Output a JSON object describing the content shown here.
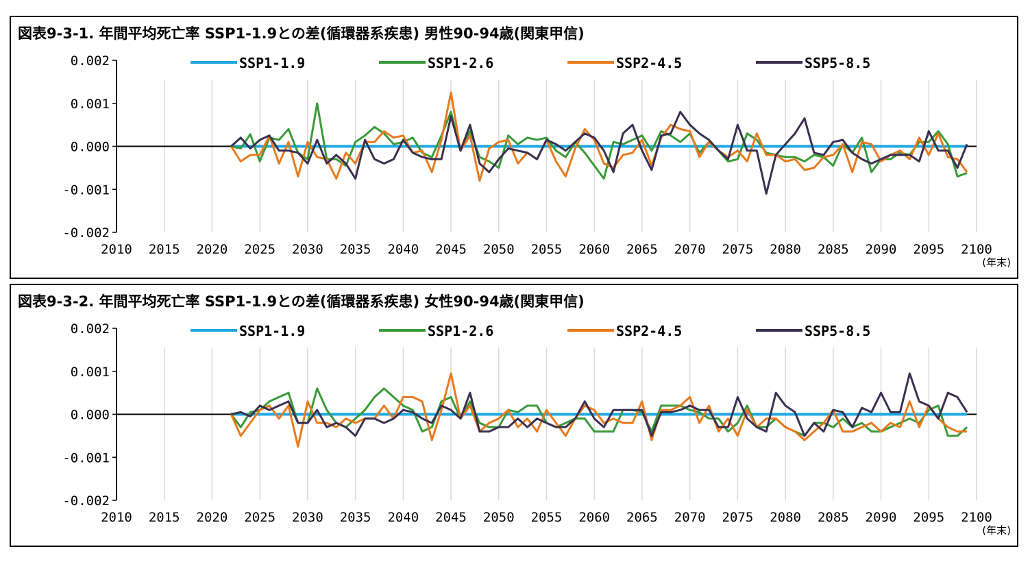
{
  "chart_data": [
    {
      "type": "line",
      "title": "図表9-3-1. 年間平均死亡率 SSP1-1.9との差(循環器系疾患) 男性90-94歳(関東甲信)",
      "xlabel": "",
      "ylabel": "",
      "x_unit": "(年末)",
      "xlim": [
        2010,
        2100
      ],
      "ylim": [
        -0.002,
        0.002
      ],
      "xticks": [
        2010,
        2015,
        2020,
        2025,
        2030,
        2035,
        2040,
        2045,
        2050,
        2055,
        2060,
        2065,
        2070,
        2075,
        2080,
        2085,
        2090,
        2095,
        2100
      ],
      "yticks": [
        0.002,
        0.001,
        0.0,
        -0.001,
        -0.002
      ],
      "ytick_labels": [
        "0.002",
        "0.001",
        "0.000",
        "-0.001",
        "-0.002"
      ],
      "grid": "vertical",
      "legend": "top",
      "baseline": {
        "x": [
          2010,
          2100
        ],
        "y": 0
      },
      "x": [
        2022,
        2023,
        2024,
        2025,
        2026,
        2027,
        2028,
        2029,
        2030,
        2031,
        2032,
        2033,
        2034,
        2035,
        2036,
        2037,
        2038,
        2039,
        2040,
        2041,
        2042,
        2043,
        2044,
        2045,
        2046,
        2047,
        2048,
        2049,
        2050,
        2051,
        2052,
        2053,
        2054,
        2055,
        2056,
        2057,
        2058,
        2059,
        2060,
        2061,
        2062,
        2063,
        2064,
        2065,
        2066,
        2067,
        2068,
        2069,
        2070,
        2071,
        2072,
        2073,
        2074,
        2075,
        2076,
        2077,
        2078,
        2079,
        2080,
        2081,
        2082,
        2083,
        2084,
        2085,
        2086,
        2087,
        2088,
        2089,
        2090,
        2091,
        2092,
        2093,
        2094,
        2095,
        2096,
        2097,
        2098,
        2099
      ],
      "series": [
        {
          "name": "SSP1-1.9",
          "color": "#1fa8e0",
          "values": [
            0,
            0,
            0,
            0,
            0,
            0,
            0,
            0,
            0,
            0,
            0,
            0,
            0,
            0,
            0,
            0,
            0,
            0,
            0,
            0,
            0,
            0,
            0,
            0,
            0,
            0,
            0,
            0,
            0,
            0,
            0,
            0,
            0,
            0,
            0,
            0,
            0,
            0,
            0,
            0,
            0,
            0,
            0,
            0,
            0,
            0,
            0,
            0,
            0,
            0,
            0,
            0,
            0,
            0,
            0,
            0,
            0,
            0,
            0,
            0,
            0,
            0,
            0,
            0,
            0,
            0,
            0,
            0,
            0,
            0,
            0,
            0,
            0,
            0,
            0,
            0,
            0,
            0
          ]
        },
        {
          "name": "SSP1-2.6",
          "color": "#3a9a3a",
          "values": [
            0,
            -5e-05,
            0.00028,
            -0.00035,
            0.0002,
            0.00015,
            0.0004,
            -0.00015,
            -0.0003,
            0.001,
            -0.0003,
            -0.0003,
            -0.00045,
            0.0001,
            0.00025,
            0.00045,
            0.0003,
            5e-05,
            0.0001,
            0.0002,
            -0.00015,
            -0.00025,
            0.00025,
            0.0008,
            -0.0001,
            0.00035,
            -0.00025,
            -0.00035,
            -0.0005,
            0.00025,
            5e-05,
            0.0002,
            0.00015,
            0.0002,
            -0.0001,
            -0.00025,
            0.0001,
            -0.00015,
            -0.00045,
            -0.00075,
            0.0001,
            5e-05,
            0.00015,
            0.00025,
            -0.0001,
            0.00035,
            0.00025,
            0.0001,
            0.0003,
            -0.00015,
            0.0001,
            -0.0001,
            -0.00035,
            -0.0003,
            0.0003,
            0.00015,
            -0.00015,
            -0.0002,
            -0.00025,
            -0.00025,
            -0.00035,
            -0.0002,
            -0.00025,
            -0.00045,
            5e-05,
            -0.00015,
            0.0002,
            -0.0006,
            -0.0003,
            -0.0003,
            -0.00015,
            -0.0002,
            0.0001,
            0.0001,
            0.00035,
            5e-05,
            -0.0007,
            -0.00062
          ]
        },
        {
          "name": "SSP2-4.5",
          "color": "#e87a1e",
          "values": [
            0,
            -0.00035,
            -0.0002,
            -0.0002,
            0.00025,
            -0.0004,
            0.0001,
            -0.0007,
            0.0001,
            -0.00025,
            -0.0003,
            -0.00075,
            -0.00015,
            -0.0004,
            0.0001,
            0.0001,
            0.00035,
            0.0002,
            0.00025,
            -0.00015,
            -0.0001,
            -0.0006,
            0.00015,
            0.00125,
            -0.0001,
            0.00025,
            -0.0008,
            -5e-05,
            0.0001,
            0.00015,
            -0.0004,
            -0.00015,
            -0.0003,
            0.00015,
            -0.00035,
            -0.0007,
            -5e-05,
            0.0004,
            0.00015,
            -0.0004,
            -0.0005,
            -0.0002,
            -0.00015,
            0.00015,
            -0.00045,
            0.0002,
            0.0005,
            0.0004,
            0.00035,
            -0.00025,
            0.0001,
            -0.0001,
            -0.00025,
            -0.0001,
            -0.00035,
            0.0003,
            -0.0002,
            -0.0002,
            -0.00035,
            -0.0003,
            -0.00055,
            -0.0005,
            -0.00025,
            -0.0002,
            5e-05,
            -0.0006,
            0.0001,
            5e-05,
            -0.00035,
            -0.0002,
            -0.0001,
            -0.0003,
            0.0002,
            -0.0002,
            0.0003,
            -0.00025,
            -0.0003,
            -0.0006
          ]
        },
        {
          "name": "SSP5-8.5",
          "color": "#3b3050",
          "values": [
            0,
            0.0002,
            -5e-05,
            0.00015,
            0.00025,
            -0.0001,
            -0.0001,
            -0.00015,
            -0.0004,
            0.00015,
            -0.0004,
            -0.0002,
            -0.0004,
            -0.00075,
            0.00015,
            -0.0003,
            -0.0004,
            -0.0003,
            0.00015,
            -0.00015,
            -0.00025,
            -0.0003,
            -0.0003,
            0.0007,
            -0.0001,
            0.0005,
            -0.0004,
            -0.0006,
            -0.0003,
            -5e-05,
            -0.0001,
            -0.00015,
            -0.0003,
            0.00015,
            5e-05,
            -0.0001,
            0.0001,
            0.0003,
            0.0002,
            -0.0001,
            -0.0006,
            0.0003,
            0.0005,
            -0.0001,
            -0.00055,
            0.00025,
            0.0003,
            0.0008,
            0.0005,
            0.0003,
            0.00015,
            -0.0001,
            -0.0003,
            0.0005,
            -0.0001,
            -0.0001,
            -0.0011,
            -0.0002,
            5e-05,
            0.0003,
            0.00065,
            -0.00015,
            -0.0002,
            0.0001,
            0.00015,
            -0.00015,
            -0.0003,
            -0.0004,
            -0.0003,
            -0.0002,
            -0.0002,
            -0.0002,
            -0.00035,
            0.00035,
            -0.0001,
            -0.0001,
            -0.0005,
            5e-05
          ]
        }
      ]
    },
    {
      "type": "line",
      "title": "図表9-3-2. 年間平均死亡率 SSP1-1.9との差(循環器系疾患) 女性90-94歳(関東甲信)",
      "xlabel": "",
      "ylabel": "",
      "x_unit": "(年末)",
      "xlim": [
        2010,
        2100
      ],
      "ylim": [
        -0.002,
        0.002
      ],
      "xticks": [
        2010,
        2015,
        2020,
        2025,
        2030,
        2035,
        2040,
        2045,
        2050,
        2055,
        2060,
        2065,
        2070,
        2075,
        2080,
        2085,
        2090,
        2095,
        2100
      ],
      "yticks": [
        0.002,
        0.001,
        0.0,
        -0.001,
        -0.002
      ],
      "ytick_labels": [
        "0.002",
        "0.001",
        "0.000",
        "-0.001",
        "-0.002"
      ],
      "grid": "vertical",
      "legend": "top",
      "baseline": {
        "x": [
          2010,
          2100
        ],
        "y": 0
      },
      "x": [
        2022,
        2023,
        2024,
        2025,
        2026,
        2027,
        2028,
        2029,
        2030,
        2031,
        2032,
        2033,
        2034,
        2035,
        2036,
        2037,
        2038,
        2039,
        2040,
        2041,
        2042,
        2043,
        2044,
        2045,
        2046,
        2047,
        2048,
        2049,
        2050,
        2051,
        2052,
        2053,
        2054,
        2055,
        2056,
        2057,
        2058,
        2059,
        2060,
        2061,
        2062,
        2063,
        2064,
        2065,
        2066,
        2067,
        2068,
        2069,
        2070,
        2071,
        2072,
        2073,
        2074,
        2075,
        2076,
        2077,
        2078,
        2079,
        2080,
        2081,
        2082,
        2083,
        2084,
        2085,
        2086,
        2087,
        2088,
        2089,
        2090,
        2091,
        2092,
        2093,
        2094,
        2095,
        2096,
        2097,
        2098,
        2099
      ],
      "series": [
        {
          "name": "SSP1-1.9",
          "color": "#1fa8e0",
          "values": [
            0,
            0,
            0,
            0,
            0,
            0,
            0,
            0,
            0,
            0,
            0,
            0,
            0,
            0,
            0,
            0,
            0,
            0,
            0,
            0,
            0,
            0,
            0,
            0,
            0,
            0,
            0,
            0,
            0,
            0,
            0,
            0,
            0,
            0,
            0,
            0,
            0,
            0,
            0,
            0,
            0,
            0,
            0,
            0,
            0,
            0,
            0,
            0,
            0,
            0,
            0,
            0,
            0,
            0,
            0,
            0,
            0,
            0,
            0,
            0,
            0,
            0,
            0,
            0,
            0,
            0,
            0,
            0,
            0,
            0,
            0,
            0,
            0,
            0,
            0,
            0,
            0,
            0
          ]
        },
        {
          "name": "SSP1-2.6",
          "color": "#3a9a3a",
          "values": [
            0,
            -0.0003,
            5e-05,
            0.0001,
            0.0003,
            0.0004,
            0.0005,
            -0.0002,
            -0.0002,
            0.0006,
            0.0001,
            -0.0002,
            -0.0003,
            -0.0001,
            0.0001,
            0.0004,
            0.0006,
            0.0004,
            0.0002,
            0.0001,
            -0.0004,
            -0.0003,
            0.0003,
            0.0004,
            -0.0001,
            0.0003,
            -0.0002,
            -0.0003,
            -0.0003,
            0.0001,
            5e-05,
            0.0002,
            0.0002,
            -0.0002,
            -0.0003,
            -0.0002,
            -0.0001,
            -0.0001,
            -0.0004,
            -0.0004,
            -0.0004,
            0.0001,
            0.0001,
            5e-05,
            -0.0004,
            0.0002,
            0.0002,
            0.0002,
            0.0001,
            5e-05,
            -0.0001,
            -0.0001,
            -0.0004,
            -0.0002,
            0.0002,
            -0.0003,
            -0.0003,
            -0.0001,
            -0.0003,
            -0.0004,
            -0.0005,
            -0.0002,
            -0.0002,
            -0.0003,
            -0.0001,
            -0.0003,
            -0.0002,
            -0.0004,
            -0.0004,
            -0.0003,
            -0.0002,
            -0.0001,
            -0.0002,
            0.0001,
            0.0002,
            -0.0005,
            -0.0005,
            -0.0003
          ]
        },
        {
          "name": "SSP2-4.5",
          "color": "#e87a1e",
          "values": [
            0,
            -0.0005,
            -0.0002,
            0.0001,
            0.0002,
            -0.0001,
            0.0002,
            -0.00075,
            0.0003,
            -0.0002,
            -0.0002,
            -0.0003,
            -0.0001,
            -0.0002,
            -0.0001,
            -0.0001,
            0.0002,
            -0.0001,
            0.0004,
            0.0004,
            0.0003,
            -0.0006,
            0.0001,
            0.00095,
            -0.0001,
            0.0002,
            -0.0004,
            -0.0002,
            -0.0001,
            0.0001,
            -0.0003,
            -0.0001,
            -0.0004,
            0.0001,
            -0.0002,
            -0.0005,
            -0.0001,
            0.0002,
            0.0001,
            -0.0002,
            -0.0001,
            -0.0002,
            -0.0002,
            0.0003,
            -0.0006,
            0.0001,
            0.0001,
            0.0002,
            0.0004,
            -0.0002,
            0.0002,
            -0.0004,
            -0.0001,
            -0.0005,
            0.0001,
            -0.0003,
            -0.0001,
            -0.0001,
            -0.0003,
            -0.0004,
            -0.0006,
            -0.0004,
            -0.0002,
            0.0001,
            -0.0004,
            -0.0004,
            -0.0003,
            -0.0002,
            -0.0004,
            -0.0002,
            -0.0003,
            0.0003,
            -0.0003,
            0.0002,
            -0.0001,
            -0.0003,
            -0.0004,
            -0.0004
          ]
        },
        {
          "name": "SSP5-8.5",
          "color": "#3b3050",
          "values": [
            0,
            5e-05,
            -5e-05,
            0.0002,
            0.0001,
            0.0002,
            0.0003,
            -0.0002,
            -0.0002,
            0.0001,
            -0.0003,
            -0.0002,
            -0.0003,
            -0.0005,
            -0.0001,
            -0.0001,
            -0.0002,
            -0.0001,
            0.0001,
            5e-05,
            -0.0001,
            -0.0002,
            0.0002,
            0.0001,
            -0.0001,
            0.0005,
            -0.0004,
            -0.0004,
            -0.0003,
            -0.0003,
            -0.0001,
            -0.0003,
            -0.0001,
            -0.0002,
            -0.0003,
            -0.0003,
            -0.0001,
            0.0003,
            -0.0001,
            -0.0003,
            0.0001,
            0.0001,
            0.0001,
            0.0001,
            -0.0005,
            5e-05,
            5e-05,
            0.0001,
            0.0002,
            0.0001,
            0.0001,
            -0.0003,
            -0.0003,
            0.0004,
            -0.0001,
            -0.0003,
            -0.0004,
            0.0005,
            0.0002,
            5e-05,
            -0.0005,
            -0.0002,
            -0.0004,
            0.0001,
            5e-05,
            -0.0003,
            0.00015,
            5e-05,
            0.0005,
            5e-05,
            5e-05,
            0.00095,
            0.0003,
            0.0002,
            -0.0001,
            0.0005,
            0.0004,
            5e-05
          ]
        }
      ]
    }
  ]
}
